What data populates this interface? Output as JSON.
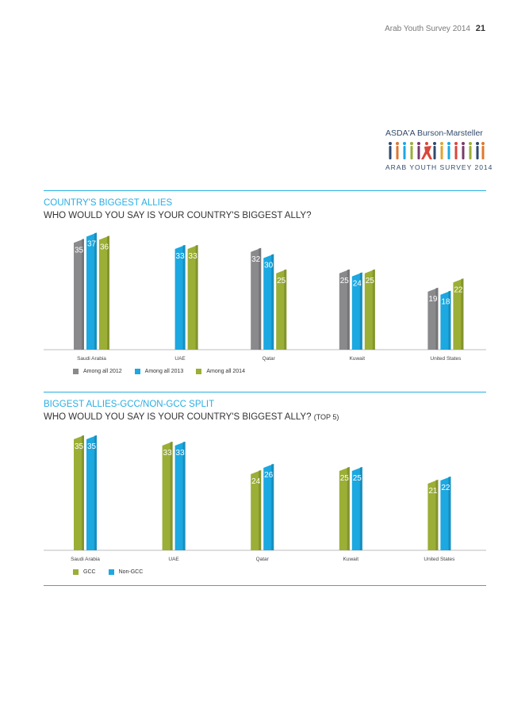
{
  "header": {
    "survey_name": "Arab Youth Survey 2014",
    "page_number": "21"
  },
  "logo": {
    "brand": "ASDA'A Burson-Marsteller",
    "survey": "ARAB YOUTH SURVEY 2014"
  },
  "colors": {
    "accent": "#29aee3",
    "gray": "#8a8a8d",
    "blue": "#1ca8e0",
    "green": "#9bae36"
  },
  "chart_data": [
    {
      "type": "bar",
      "title": "COUNTRY'S BIGGEST ALLIES",
      "subtitle": "WHO WOULD YOU SAY IS YOUR COUNTRY'S BIGGEST ALLY?",
      "categories": [
        "Saudi Arabia",
        "UAE",
        "Qatar",
        "Kuwait",
        "United States"
      ],
      "series": [
        {
          "name": "Among all 2012",
          "color": "#8a8a8d",
          "values": [
            35,
            null,
            32,
            25,
            19
          ]
        },
        {
          "name": "Among all 2013",
          "color": "#1ca8e0",
          "values": [
            37,
            33,
            30,
            24,
            18
          ]
        },
        {
          "name": "Among all 2014",
          "color": "#9bae36",
          "values": [
            36,
            33,
            25,
            25,
            22
          ]
        }
      ],
      "legend": "bottom-left",
      "grid": false
    },
    {
      "type": "bar",
      "title": "BIGGEST ALLIES-GCC/NON-GCC SPLIT",
      "subtitle": "WHO WOULD YOU SAY IS YOUR COUNTRY'S BIGGEST ALLY?",
      "subtitle_suffix": "(TOP 5)",
      "categories": [
        "Saudi Arabia",
        "UAE",
        "Qatar",
        "Kuwait",
        "United States"
      ],
      "series": [
        {
          "name": "GCC",
          "color": "#9bae36",
          "values": [
            35,
            33,
            24,
            25,
            21
          ]
        },
        {
          "name": "Non-GCC",
          "color": "#1ca8e0",
          "values": [
            35,
            33,
            26,
            25,
            22
          ]
        }
      ],
      "legend": "bottom-left",
      "grid": false
    }
  ]
}
